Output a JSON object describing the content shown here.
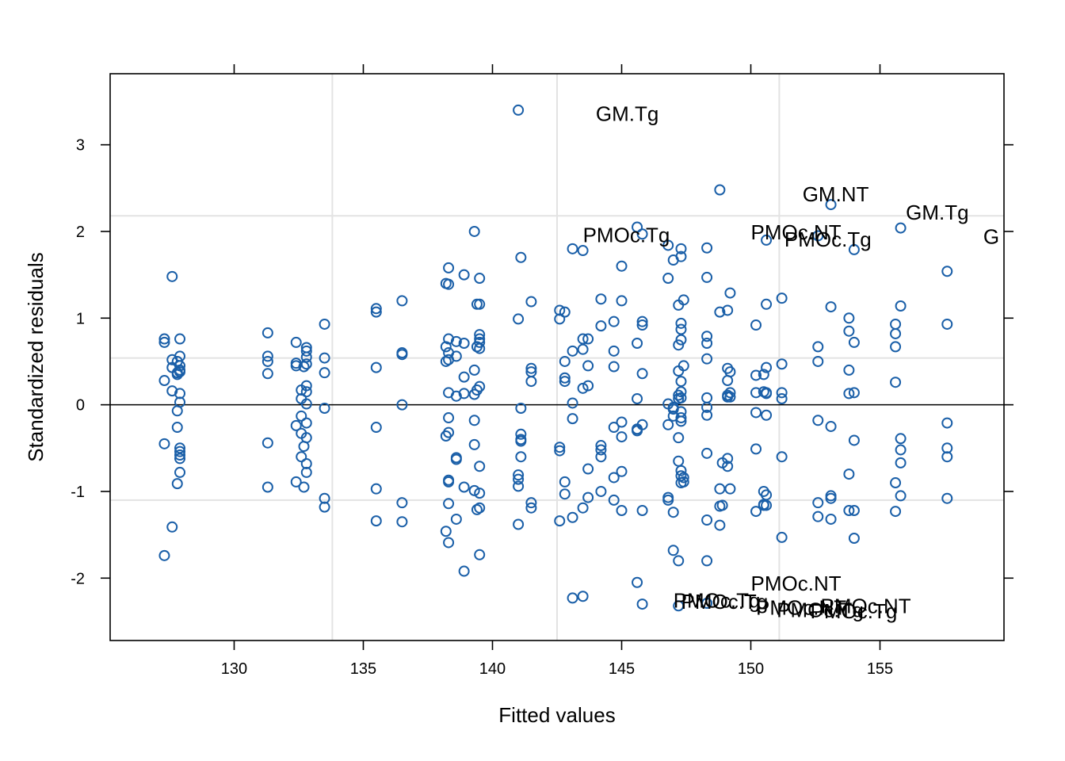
{
  "colors": {
    "point": "#1a5fa8",
    "grid": "#e3e3e3",
    "axis": "#000000"
  },
  "chart_data": {
    "type": "scatter",
    "title": "",
    "xlabel": "Fitted values",
    "ylabel": "Standardized residuals",
    "xlim": [
      125.2,
      159.8
    ],
    "ylim": [
      -2.72,
      3.82
    ],
    "x_ticks": [
      130,
      135,
      140,
      145,
      150,
      155
    ],
    "y_ticks": [
      -2,
      -1,
      0,
      1,
      2,
      3
    ],
    "x_tick_labels": [
      "130",
      "135",
      "140",
      "145",
      "150",
      "155"
    ],
    "y_tick_labels": [
      "-2",
      "-1",
      "0",
      "1",
      "2",
      "3"
    ],
    "reference_line_y": 0,
    "grid": {
      "x": [
        133.8,
        142.5,
        151.1
      ],
      "y": [
        -1.1,
        0.54,
        2.18
      ]
    },
    "points": [
      [
        127.3,
        0.76
      ],
      [
        127.3,
        0.72
      ],
      [
        127.3,
        0.28
      ],
      [
        127.3,
        -0.45
      ],
      [
        127.3,
        -1.74
      ],
      [
        127.6,
        1.48
      ],
      [
        127.6,
        0.52
      ],
      [
        127.6,
        0.43
      ],
      [
        127.6,
        0.16
      ],
      [
        127.6,
        -1.41
      ],
      [
        127.8,
        -0.26
      ],
      [
        127.8,
        -0.91
      ],
      [
        127.8,
        0.35
      ],
      [
        127.8,
        0.5
      ],
      [
        127.8,
        -0.07
      ],
      [
        127.8,
        0.37
      ],
      [
        127.9,
        0.76
      ],
      [
        127.9,
        0.56
      ],
      [
        127.9,
        0.45
      ],
      [
        127.9,
        0.4
      ],
      [
        127.9,
        0.38
      ],
      [
        127.9,
        0.13
      ],
      [
        127.9,
        0.03
      ],
      [
        127.9,
        -0.5
      ],
      [
        127.9,
        -0.54
      ],
      [
        127.9,
        -0.58
      ],
      [
        127.9,
        -0.62
      ],
      [
        127.9,
        -0.78
      ],
      [
        131.3,
        0.83
      ],
      [
        131.3,
        0.56
      ],
      [
        131.3,
        0.5
      ],
      [
        131.3,
        0.36
      ],
      [
        131.3,
        -0.44
      ],
      [
        131.3,
        -0.95
      ],
      [
        132.4,
        0.72
      ],
      [
        132.4,
        0.48
      ],
      [
        132.4,
        0.45
      ],
      [
        132.4,
        -0.24
      ],
      [
        132.4,
        -0.89
      ],
      [
        132.6,
        0.17
      ],
      [
        132.6,
        0.07
      ],
      [
        132.6,
        -0.13
      ],
      [
        132.6,
        -0.33
      ],
      [
        132.6,
        -0.6
      ],
      [
        132.7,
        0.44
      ],
      [
        132.7,
        -0.48
      ],
      [
        132.7,
        -0.95
      ],
      [
        132.8,
        0.66
      ],
      [
        132.8,
        0.62
      ],
      [
        132.8,
        0.55
      ],
      [
        132.8,
        0.47
      ],
      [
        132.8,
        0.22
      ],
      [
        132.8,
        0.15
      ],
      [
        132.8,
        0.01
      ],
      [
        132.8,
        -0.21
      ],
      [
        132.8,
        -0.38
      ],
      [
        132.8,
        -0.68
      ],
      [
        132.8,
        -0.78
      ],
      [
        133.5,
        0.93
      ],
      [
        133.5,
        0.54
      ],
      [
        133.5,
        0.37
      ],
      [
        133.5,
        -0.04
      ],
      [
        133.5,
        -1.08
      ],
      [
        133.5,
        -1.18
      ],
      [
        135.5,
        1.11
      ],
      [
        135.5,
        1.07
      ],
      [
        135.5,
        0.43
      ],
      [
        135.5,
        -0.26
      ],
      [
        135.5,
        -0.97
      ],
      [
        135.5,
        -1.34
      ],
      [
        136.5,
        1.2
      ],
      [
        136.5,
        0.6
      ],
      [
        136.5,
        0.58
      ],
      [
        136.5,
        0.0
      ],
      [
        136.5,
        -1.13
      ],
      [
        136.5,
        -1.35
      ],
      [
        138.2,
        1.4
      ],
      [
        138.2,
        0.67
      ],
      [
        138.2,
        0.5
      ],
      [
        138.2,
        -0.36
      ],
      [
        138.2,
        -1.46
      ],
      [
        138.3,
        1.58
      ],
      [
        138.3,
        1.39
      ],
      [
        138.3,
        0.76
      ],
      [
        138.3,
        0.6
      ],
      [
        138.3,
        0.52
      ],
      [
        138.3,
        0.14
      ],
      [
        138.3,
        -0.15
      ],
      [
        138.3,
        -0.32
      ],
      [
        138.3,
        -0.87
      ],
      [
        138.3,
        -0.89
      ],
      [
        138.3,
        -1.14
      ],
      [
        138.3,
        -1.59
      ],
      [
        138.6,
        0.73
      ],
      [
        138.6,
        0.56
      ],
      [
        138.6,
        0.1
      ],
      [
        138.6,
        -0.61
      ],
      [
        138.6,
        -0.63
      ],
      [
        138.6,
        -1.32
      ],
      [
        138.9,
        1.5
      ],
      [
        138.9,
        0.71
      ],
      [
        138.9,
        0.32
      ],
      [
        138.9,
        0.13
      ],
      [
        138.9,
        -0.95
      ],
      [
        138.9,
        -1.92
      ],
      [
        139.3,
        2.0
      ],
      [
        139.3,
        0.4
      ],
      [
        139.3,
        0.12
      ],
      [
        139.3,
        -0.18
      ],
      [
        139.3,
        -0.46
      ],
      [
        139.3,
        -0.99
      ],
      [
        139.4,
        1.16
      ],
      [
        139.4,
        0.67
      ],
      [
        139.4,
        0.17
      ],
      [
        139.4,
        -1.21
      ],
      [
        139.5,
        1.46
      ],
      [
        139.5,
        1.16
      ],
      [
        139.5,
        0.81
      ],
      [
        139.5,
        0.76
      ],
      [
        139.5,
        0.72
      ],
      [
        139.5,
        0.65
      ],
      [
        139.5,
        0.21
      ],
      [
        139.5,
        -0.71
      ],
      [
        139.5,
        -1.02
      ],
      [
        139.5,
        -1.19
      ],
      [
        139.5,
        -1.73
      ],
      [
        141.0,
        3.4
      ],
      [
        141.0,
        0.99
      ],
      [
        141.0,
        -0.81
      ],
      [
        141.0,
        -0.86
      ],
      [
        141.0,
        -0.94
      ],
      [
        141.0,
        -1.38
      ],
      [
        141.1,
        1.7
      ],
      [
        141.1,
        -0.04
      ],
      [
        141.1,
        -0.34
      ],
      [
        141.1,
        -0.4
      ],
      [
        141.1,
        -0.42
      ],
      [
        141.1,
        -0.6
      ],
      [
        141.5,
        1.19
      ],
      [
        141.5,
        0.42
      ],
      [
        141.5,
        0.38
      ],
      [
        141.5,
        0.27
      ],
      [
        141.5,
        -1.13
      ],
      [
        141.5,
        -1.19
      ],
      [
        142.6,
        1.09
      ],
      [
        142.6,
        0.99
      ],
      [
        142.6,
        -0.49
      ],
      [
        142.6,
        -0.53
      ],
      [
        142.6,
        -1.34
      ],
      [
        142.8,
        1.07
      ],
      [
        142.8,
        0.5
      ],
      [
        142.8,
        0.31
      ],
      [
        142.8,
        0.27
      ],
      [
        142.8,
        -0.89
      ],
      [
        142.8,
        -1.03
      ],
      [
        143.1,
        1.8
      ],
      [
        143.1,
        0.62
      ],
      [
        143.1,
        0.02
      ],
      [
        143.1,
        -0.16
      ],
      [
        143.1,
        -1.3
      ],
      [
        143.1,
        -2.23
      ],
      [
        143.5,
        1.78
      ],
      [
        143.5,
        0.76
      ],
      [
        143.5,
        0.64
      ],
      [
        143.5,
        0.19
      ],
      [
        143.5,
        -1.19
      ],
      [
        143.5,
        -2.21
      ],
      [
        143.7,
        0.76
      ],
      [
        143.7,
        0.45
      ],
      [
        143.7,
        0.22
      ],
      [
        143.7,
        -0.74
      ],
      [
        143.7,
        -1.07
      ],
      [
        144.2,
        1.22
      ],
      [
        144.2,
        0.91
      ],
      [
        144.2,
        -0.47
      ],
      [
        144.2,
        -0.52
      ],
      [
        144.2,
        -0.6
      ],
      [
        144.2,
        -1.0
      ],
      [
        144.7,
        0.96
      ],
      [
        144.7,
        0.62
      ],
      [
        144.7,
        0.44
      ],
      [
        144.7,
        -0.26
      ],
      [
        144.7,
        -0.84
      ],
      [
        144.7,
        -1.1
      ],
      [
        145.0,
        1.6
      ],
      [
        145.0,
        1.2
      ],
      [
        145.0,
        -0.2
      ],
      [
        145.0,
        -0.37
      ],
      [
        145.0,
        -0.77
      ],
      [
        145.0,
        -1.22
      ],
      [
        145.6,
        2.05
      ],
      [
        145.6,
        0.71
      ],
      [
        145.6,
        0.07
      ],
      [
        145.6,
        -0.28
      ],
      [
        145.6,
        -0.3
      ],
      [
        145.6,
        -2.05
      ],
      [
        145.8,
        1.97
      ],
      [
        145.8,
        0.96
      ],
      [
        145.8,
        0.92
      ],
      [
        145.8,
        0.36
      ],
      [
        145.8,
        -0.23
      ],
      [
        145.8,
        -1.22
      ],
      [
        145.8,
        -2.3
      ],
      [
        146.8,
        1.84
      ],
      [
        146.8,
        1.46
      ],
      [
        146.8,
        0.01
      ],
      [
        146.8,
        -0.23
      ],
      [
        146.8,
        -1.07
      ],
      [
        146.8,
        -1.1
      ],
      [
        147.0,
        1.67
      ],
      [
        147.0,
        -0.03
      ],
      [
        147.0,
        -0.05
      ],
      [
        147.0,
        -0.13
      ],
      [
        147.0,
        -1.24
      ],
      [
        147.0,
        -1.68
      ],
      [
        147.2,
        1.15
      ],
      [
        147.2,
        0.69
      ],
      [
        147.2,
        0.39
      ],
      [
        147.2,
        0.11
      ],
      [
        147.2,
        0.07
      ],
      [
        147.2,
        -0.38
      ],
      [
        147.2,
        -0.65
      ],
      [
        147.2,
        -1.8
      ],
      [
        147.2,
        -2.32
      ],
      [
        147.3,
        1.8
      ],
      [
        147.3,
        1.71
      ],
      [
        147.3,
        0.94
      ],
      [
        147.3,
        0.87
      ],
      [
        147.3,
        0.75
      ],
      [
        147.3,
        0.27
      ],
      [
        147.3,
        0.15
      ],
      [
        147.3,
        0.08
      ],
      [
        147.3,
        -0.08
      ],
      [
        147.3,
        -0.15
      ],
      [
        147.3,
        -0.19
      ],
      [
        147.3,
        -0.76
      ],
      [
        147.3,
        -0.82
      ],
      [
        147.3,
        -0.9
      ],
      [
        147.4,
        1.21
      ],
      [
        147.4,
        0.45
      ],
      [
        147.4,
        -0.84
      ],
      [
        147.4,
        -0.89
      ],
      [
        148.3,
        1.81
      ],
      [
        148.3,
        1.47
      ],
      [
        148.3,
        0.79
      ],
      [
        148.3,
        0.71
      ],
      [
        148.3,
        0.53
      ],
      [
        148.3,
        0.08
      ],
      [
        148.3,
        -0.03
      ],
      [
        148.3,
        -0.12
      ],
      [
        148.3,
        -0.56
      ],
      [
        148.3,
        -1.33
      ],
      [
        148.3,
        -1.8
      ],
      [
        148.3,
        -2.29
      ],
      [
        148.8,
        2.48
      ],
      [
        148.8,
        1.07
      ],
      [
        148.8,
        -0.97
      ],
      [
        148.8,
        -1.17
      ],
      [
        148.8,
        -1.39
      ],
      [
        148.9,
        -0.67
      ],
      [
        148.9,
        -1.16
      ],
      [
        149.1,
        1.09
      ],
      [
        149.1,
        0.42
      ],
      [
        149.1,
        0.28
      ],
      [
        149.1,
        0.11
      ],
      [
        149.1,
        0.09
      ],
      [
        149.1,
        -0.62
      ],
      [
        149.1,
        -0.71
      ],
      [
        149.2,
        1.29
      ],
      [
        149.2,
        0.38
      ],
      [
        149.2,
        0.14
      ],
      [
        149.2,
        0.09
      ],
      [
        149.2,
        -0.97
      ],
      [
        150.2,
        0.92
      ],
      [
        150.2,
        0.34
      ],
      [
        150.2,
        0.14
      ],
      [
        150.2,
        -0.09
      ],
      [
        150.2,
        -0.51
      ],
      [
        150.2,
        -1.23
      ],
      [
        150.5,
        0.35
      ],
      [
        150.5,
        0.15
      ],
      [
        150.5,
        -1.0
      ],
      [
        150.5,
        -1.15
      ],
      [
        150.5,
        -1.16
      ],
      [
        150.6,
        1.9
      ],
      [
        150.6,
        1.16
      ],
      [
        150.6,
        0.43
      ],
      [
        150.6,
        0.14
      ],
      [
        150.6,
        0.13
      ],
      [
        150.6,
        -0.12
      ],
      [
        150.6,
        -1.04
      ],
      [
        150.6,
        -1.16
      ],
      [
        151.2,
        1.23
      ],
      [
        151.2,
        0.47
      ],
      [
        151.2,
        0.14
      ],
      [
        151.2,
        0.07
      ],
      [
        151.2,
        -0.6
      ],
      [
        151.2,
        -1.53
      ],
      [
        152.6,
        1.95
      ],
      [
        152.6,
        0.67
      ],
      [
        152.6,
        0.5
      ],
      [
        152.6,
        -0.18
      ],
      [
        152.6,
        -1.13
      ],
      [
        152.6,
        -1.29
      ],
      [
        153.1,
        2.31
      ],
      [
        153.1,
        1.13
      ],
      [
        153.1,
        -0.25
      ],
      [
        153.1,
        -1.05
      ],
      [
        153.1,
        -1.08
      ],
      [
        153.1,
        -1.32
      ],
      [
        153.8,
        1.0
      ],
      [
        153.8,
        0.85
      ],
      [
        153.8,
        0.4
      ],
      [
        153.8,
        0.13
      ],
      [
        153.8,
        -0.8
      ],
      [
        153.8,
        -1.22
      ],
      [
        154.0,
        1.79
      ],
      [
        154.0,
        0.72
      ],
      [
        154.0,
        0.14
      ],
      [
        154.0,
        -0.41
      ],
      [
        154.0,
        -1.22
      ],
      [
        154.0,
        -1.54
      ],
      [
        155.6,
        0.93
      ],
      [
        155.6,
        0.82
      ],
      [
        155.6,
        0.67
      ],
      [
        155.6,
        0.26
      ],
      [
        155.6,
        -0.9
      ],
      [
        155.6,
        -1.23
      ],
      [
        155.8,
        2.04
      ],
      [
        155.8,
        1.14
      ],
      [
        155.8,
        -0.39
      ],
      [
        155.8,
        -0.52
      ],
      [
        155.8,
        -0.67
      ],
      [
        155.8,
        -1.05
      ],
      [
        157.6,
        1.54
      ],
      [
        157.6,
        0.93
      ],
      [
        157.6,
        -0.21
      ],
      [
        157.6,
        -0.5
      ],
      [
        157.6,
        -0.6
      ],
      [
        157.6,
        -1.08
      ]
    ],
    "annotations": [
      {
        "text": "GM.Tg",
        "x": 144.0,
        "y": 3.36
      },
      {
        "text": "GM.NT",
        "x": 152.0,
        "y": 2.43
      },
      {
        "text": "GM.Tg",
        "x": 156.0,
        "y": 2.22
      },
      {
        "text": "G",
        "x": 159.0,
        "y": 1.94
      },
      {
        "text": "PMOc.Tg",
        "x": 143.5,
        "y": 1.96
      },
      {
        "text": "PMOc.NT",
        "x": 150.0,
        "y": 1.99
      },
      {
        "text": "PMOc.Tg",
        "x": 151.3,
        "y": 1.91
      },
      {
        "text": "PMOc.NT",
        "x": 150.0,
        "y": -2.06
      },
      {
        "text": "PMOc.Tg",
        "x": 147.0,
        "y": -2.26
      },
      {
        "text": "PMOc.Tg",
        "x": 147.3,
        "y": -2.27
      },
      {
        "text": "PMOc.NT",
        "x": 152.7,
        "y": -2.32
      },
      {
        "text": "PMOc.Tg",
        "x": 152.3,
        "y": -2.38
      },
      {
        "text": "PMOc.Tg",
        "x": 151.0,
        "y": -2.37
      },
      {
        "text": "PMOc.NT",
        "x": 150.2,
        "y": -2.34
      }
    ]
  }
}
